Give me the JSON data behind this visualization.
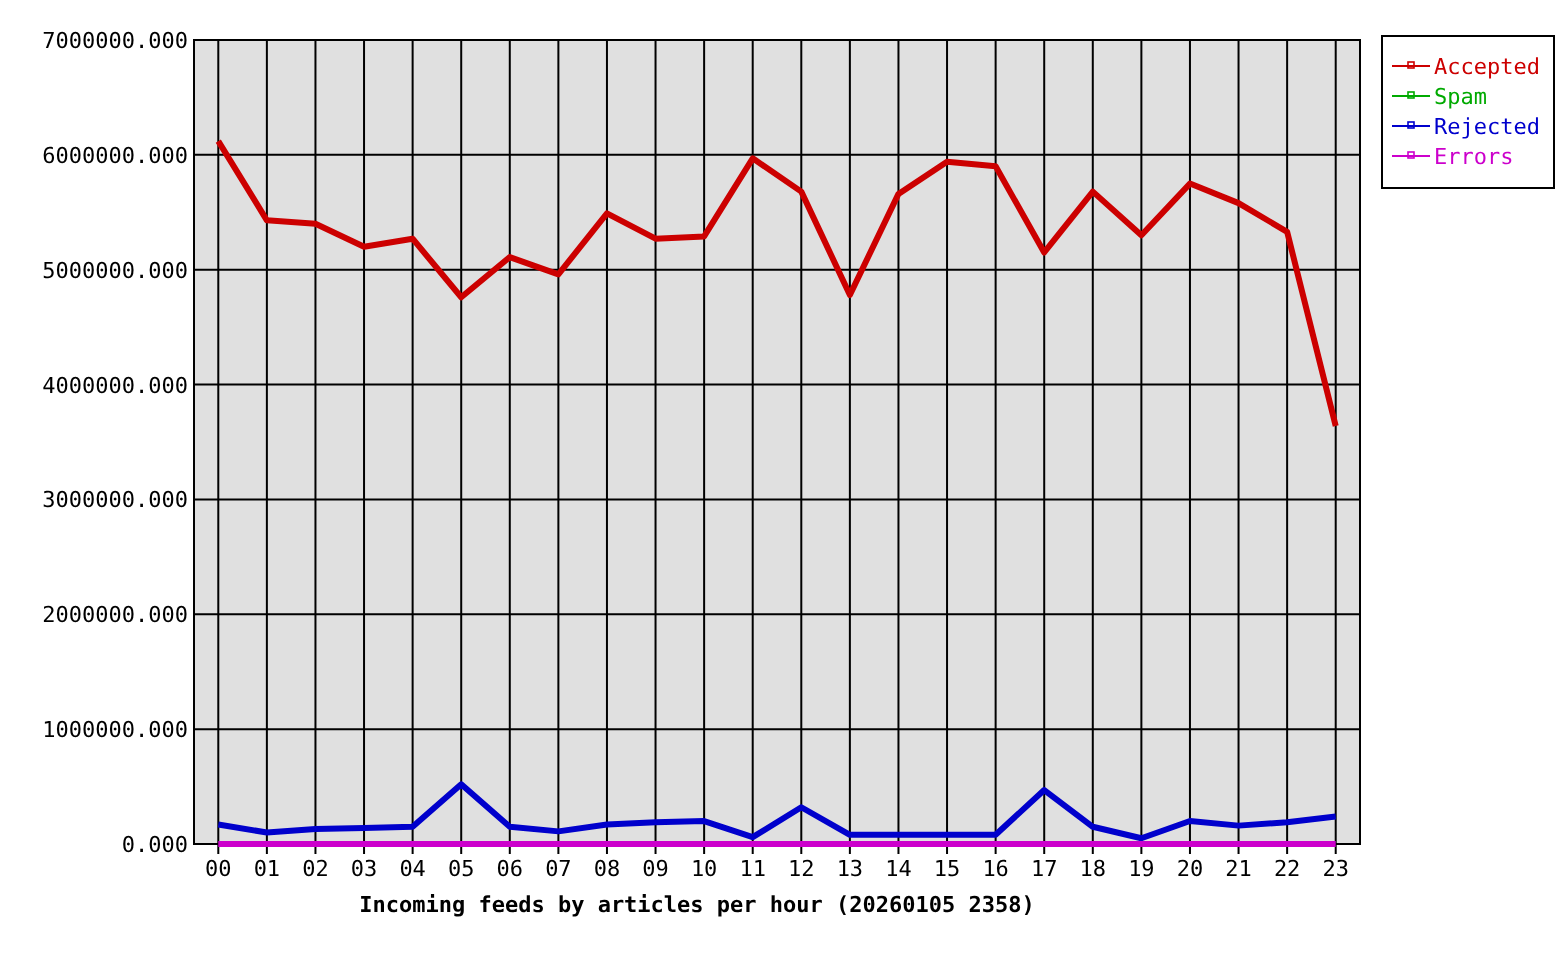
{
  "chart_data": {
    "type": "line",
    "xlabel": "Incoming feeds by articles per hour (20260105 2358)",
    "categories": [
      "00",
      "01",
      "02",
      "03",
      "04",
      "05",
      "06",
      "07",
      "08",
      "09",
      "10",
      "11",
      "12",
      "13",
      "14",
      "15",
      "16",
      "17",
      "18",
      "19",
      "20",
      "21",
      "22",
      "23"
    ],
    "series": [
      {
        "name": "Accepted",
        "color": "#cc0000",
        "values": [
          6120000,
          5430000,
          5400000,
          5200000,
          5270000,
          4760000,
          5110000,
          4960000,
          5490000,
          5270000,
          5290000,
          5970000,
          5680000,
          4780000,
          5660000,
          5940000,
          5900000,
          5150000,
          5680000,
          5300000,
          5750000,
          5580000,
          5330000,
          3640000
        ]
      },
      {
        "name": "Spam",
        "color": "#00aa00",
        "values": [
          null,
          null,
          null,
          null,
          null,
          null,
          null,
          null,
          null,
          null,
          null,
          null,
          null,
          null,
          null,
          null,
          null,
          null,
          null,
          null,
          null,
          null,
          null,
          null
        ]
      },
      {
        "name": "Rejected",
        "color": "#0000cc",
        "values": [
          170000,
          100000,
          130000,
          140000,
          150000,
          520000,
          150000,
          110000,
          170000,
          190000,
          200000,
          60000,
          320000,
          80000,
          80000,
          80000,
          80000,
          470000,
          150000,
          50000,
          200000,
          160000,
          190000,
          240000
        ]
      },
      {
        "name": "Errors",
        "color": "#cc00cc",
        "values": [
          0,
          0,
          0,
          0,
          0,
          0,
          0,
          0,
          0,
          0,
          0,
          0,
          0,
          0,
          0,
          0,
          0,
          0,
          0,
          0,
          0,
          0,
          0,
          0
        ]
      }
    ],
    "ylim": [
      0,
      7000000
    ],
    "yticks": [
      {
        "value": 0,
        "label": "0.000"
      },
      {
        "value": 1000000,
        "label": "1000000.000"
      },
      {
        "value": 2000000,
        "label": "2000000.000"
      },
      {
        "value": 3000000,
        "label": "3000000.000"
      },
      {
        "value": 4000000,
        "label": "4000000.000"
      },
      {
        "value": 5000000,
        "label": "5000000.000"
      },
      {
        "value": 6000000,
        "label": "6000000.000"
      },
      {
        "value": 7000000,
        "label": "7000000.000"
      }
    ],
    "grid": true,
    "legend": "top right",
    "marker": "none",
    "line_style": "solid"
  }
}
